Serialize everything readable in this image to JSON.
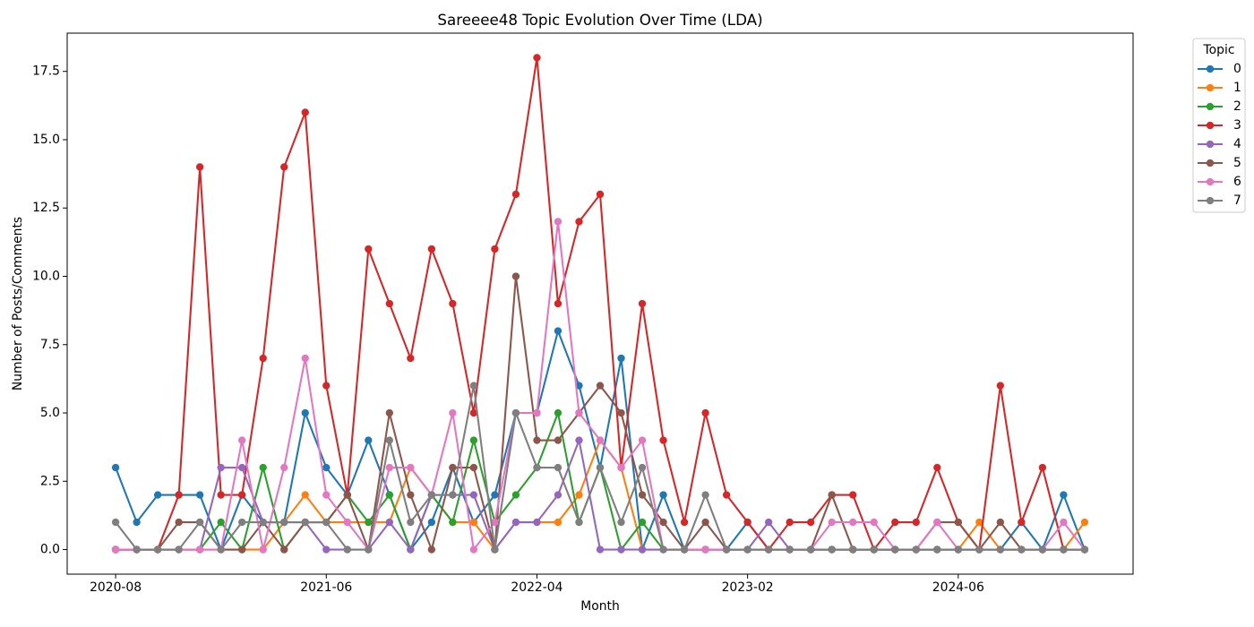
{
  "chart_data": {
    "type": "line",
    "title": "Sareeee48 Topic Evolution Over Time (LDA)",
    "xlabel": "Month",
    "ylabel": "Number of Posts/Comments",
    "ylim": [
      -0.9,
      18.9
    ],
    "yticks": [
      0,
      2.5,
      5,
      7.5,
      10,
      12.5,
      15,
      17.5
    ],
    "ytick_labels": [
      "0.0",
      "2.5",
      "5.0",
      "7.5",
      "10.0",
      "12.5",
      "15.0",
      "17.5"
    ],
    "categories": [
      "2020-08",
      "",
      "",
      "",
      "",
      "",
      "",
      "",
      "",
      "",
      "2021-06",
      "",
      "",
      "",
      "",
      "",
      "",
      "",
      "",
      "",
      "2022-04",
      "",
      "",
      "",
      "",
      "",
      "",
      "",
      "",
      "",
      "2023-02",
      "",
      "",
      "",
      "",
      "",
      "",
      "",
      "",
      "",
      "2024-06",
      "",
      "",
      "",
      "",
      "",
      ""
    ],
    "grid": false,
    "marker": "circle",
    "legend": {
      "title": "Topic",
      "position": "outside-right"
    },
    "series": [
      {
        "name": "0",
        "color": "#1f77b4",
        "values": [
          3,
          1,
          2,
          2,
          2,
          0,
          2,
          1,
          1,
          5,
          3,
          2,
          4,
          2,
          0,
          1,
          3,
          1,
          2,
          5,
          5,
          8,
          6,
          3,
          7,
          0,
          2,
          0,
          0,
          0,
          1,
          0,
          0,
          0,
          0,
          0,
          0,
          0,
          0,
          0,
          0,
          0,
          0,
          1,
          0,
          2,
          0
        ]
      },
      {
        "name": "1",
        "color": "#ff7f0e",
        "values": [
          0,
          0,
          0,
          0,
          0,
          0,
          0,
          0,
          1,
          2,
          1,
          1,
          1,
          1,
          3,
          2,
          1,
          1,
          0,
          1,
          1,
          1,
          2,
          4,
          3,
          0,
          0,
          0,
          0,
          0,
          0,
          0,
          0,
          0,
          0,
          0,
          0,
          0,
          0,
          0,
          0,
          1,
          0,
          0,
          0,
          0,
          1
        ]
      },
      {
        "name": "2",
        "color": "#2ca02c",
        "values": [
          0,
          0,
          0,
          0,
          0,
          1,
          0,
          3,
          0,
          1,
          1,
          2,
          1,
          2,
          0,
          2,
          1,
          4,
          1,
          2,
          3,
          5,
          1,
          3,
          0,
          1,
          0,
          0,
          0,
          0,
          0,
          0,
          0,
          0,
          0,
          0,
          0,
          0,
          0,
          0,
          0,
          0,
          0,
          0,
          0,
          0,
          0
        ]
      },
      {
        "name": "3",
        "color": "#d62728",
        "values": [
          0,
          0,
          0,
          2,
          14,
          2,
          2,
          7,
          14,
          16,
          6,
          2,
          11,
          9,
          7,
          11,
          9,
          5,
          11,
          13,
          18,
          9,
          12,
          13,
          3,
          9,
          4,
          1,
          5,
          2,
          1,
          0,
          1,
          1,
          2,
          2,
          0,
          1,
          1,
          3,
          1,
          0,
          6,
          1,
          3,
          0,
          0
        ]
      },
      {
        "name": "4",
        "color": "#9467bd",
        "values": [
          0,
          0,
          0,
          0,
          0,
          3,
          3,
          1,
          1,
          1,
          0,
          0,
          0,
          1,
          0,
          2,
          2,
          2,
          0,
          1,
          1,
          2,
          4,
          0,
          0,
          0,
          0,
          0,
          0,
          0,
          0,
          1,
          0,
          0,
          0,
          0,
          0,
          0,
          0,
          0,
          0,
          0,
          0,
          0,
          0,
          0,
          0
        ]
      },
      {
        "name": "5",
        "color": "#8c564b",
        "values": [
          0,
          0,
          0,
          1,
          1,
          0,
          0,
          1,
          0,
          1,
          1,
          2,
          0,
          5,
          2,
          0,
          3,
          3,
          0,
          10,
          4,
          4,
          5,
          6,
          5,
          2,
          1,
          0,
          1,
          0,
          0,
          0,
          0,
          0,
          2,
          0,
          0,
          0,
          0,
          1,
          1,
          0,
          1,
          0,
          0,
          0,
          0
        ]
      },
      {
        "name": "6",
        "color": "#e377c2",
        "values": [
          0,
          0,
          0,
          0,
          0,
          0,
          4,
          0,
          3,
          7,
          2,
          1,
          0,
          3,
          3,
          2,
          5,
          0,
          1,
          5,
          5,
          12,
          5,
          4,
          3,
          4,
          0,
          0,
          0,
          0,
          0,
          0,
          0,
          0,
          1,
          1,
          1,
          0,
          0,
          1,
          0,
          0,
          0,
          0,
          0,
          1,
          0
        ]
      },
      {
        "name": "7",
        "color": "#7f7f7f",
        "values": [
          1,
          0,
          0,
          0,
          1,
          0,
          1,
          1,
          1,
          1,
          1,
          0,
          0,
          4,
          1,
          2,
          2,
          6,
          0,
          5,
          3,
          3,
          1,
          3,
          1,
          3,
          0,
          0,
          2,
          0,
          0,
          0,
          0,
          0,
          0,
          0,
          0,
          0,
          0,
          0,
          0,
          0,
          0,
          0,
          0,
          0,
          0
        ]
      }
    ]
  }
}
